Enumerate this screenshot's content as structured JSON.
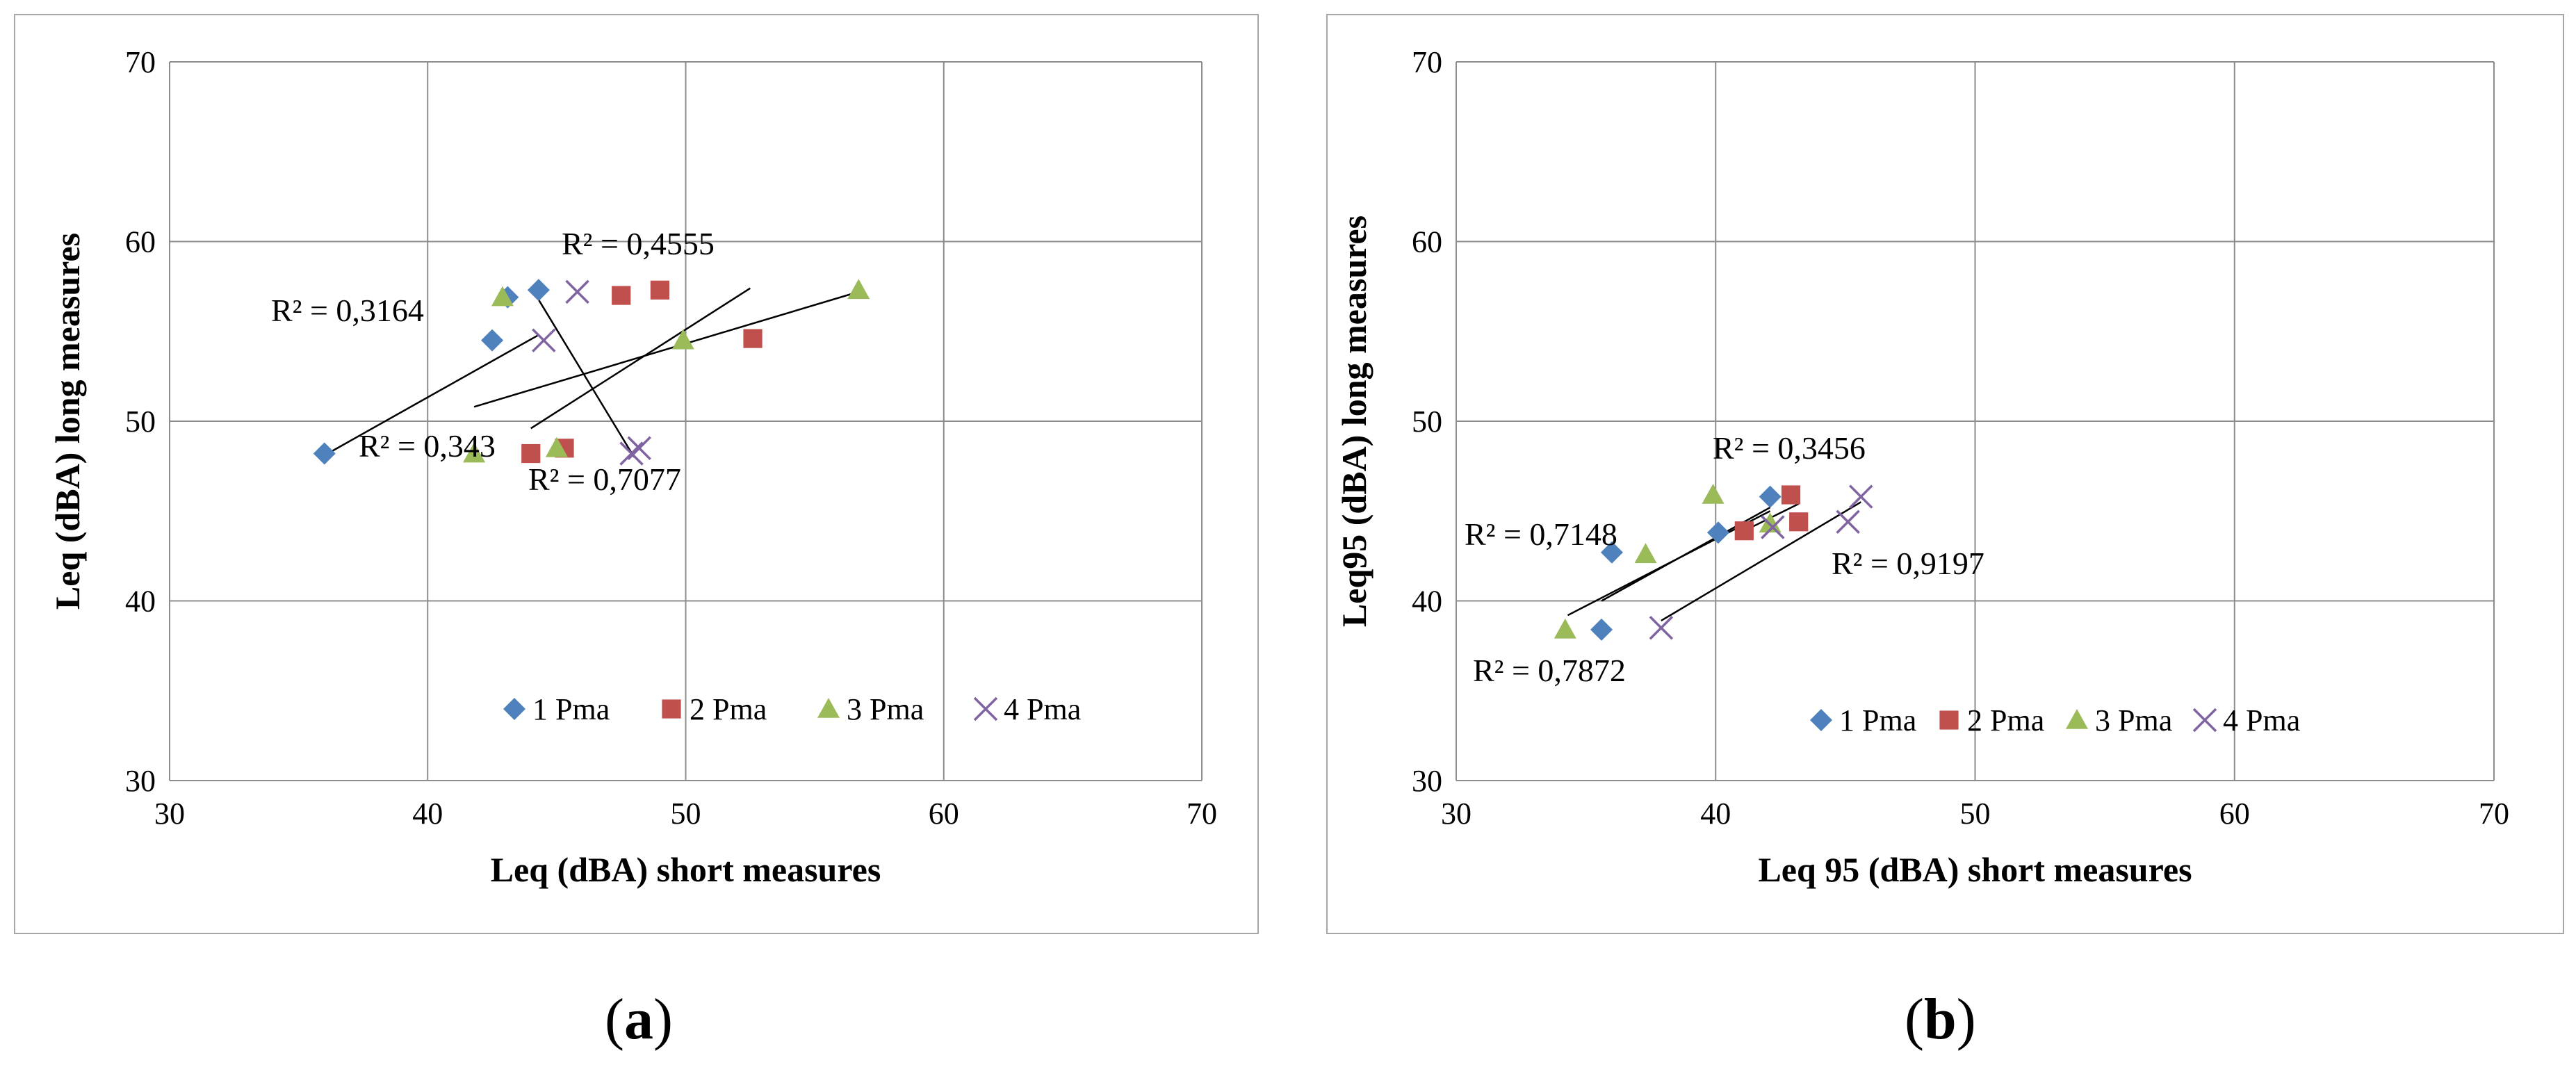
{
  "captions": {
    "a_open": "(",
    "a_letter": "a",
    "a_close": ")",
    "b_open": "(",
    "b_letter": "b",
    "b_close": ")"
  },
  "colors": {
    "s1": "#4f81bd",
    "s2": "#c0504d",
    "s3": "#9bbb59",
    "s4": "#8064a2",
    "grid": "#8c8c8c",
    "trend": "#000000"
  },
  "chart_data": [
    {
      "id": "a",
      "type": "scatter",
      "title": "",
      "xlabel": "Leq (dBA) short measures",
      "ylabel": "Leq (dBA) long measures",
      "xlim": [
        30,
        70
      ],
      "ylim": [
        30,
        70
      ],
      "xticks": [
        30,
        40,
        50,
        60,
        70
      ],
      "yticks": [
        30,
        40,
        50,
        60,
        70
      ],
      "grid": "vertical-and-horizontal",
      "legend_position": "bottom-inside",
      "series": [
        {
          "name": "1 Pma",
          "marker": "diamond",
          "color": "#4f81bd",
          "points": [
            [
              36.0,
              48.2
            ],
            [
              42.5,
              54.5
            ],
            [
              43.1,
              56.9
            ],
            [
              44.3,
              57.3
            ]
          ],
          "trend": [
            [
              36.0,
              48.1
            ],
            [
              44.3,
              54.8
            ]
          ],
          "r2": "R² = 0,3164"
        },
        {
          "name": "2 Pma",
          "marker": "square",
          "color": "#c0504d",
          "points": [
            [
              44.0,
              48.2
            ],
            [
              45.3,
              48.5
            ],
            [
              47.5,
              57.0
            ],
            [
              49.0,
              57.3
            ],
            [
              52.6,
              54.6
            ]
          ],
          "trend": [
            [
              44.0,
              49.6
            ],
            [
              52.5,
              57.4
            ]
          ],
          "r2": "R² = 0,4555"
        },
        {
          "name": "3 Pma",
          "marker": "triangle",
          "color": "#9bbb59",
          "points": [
            [
              41.8,
              48.2
            ],
            [
              42.9,
              56.9
            ],
            [
              45.0,
              48.5
            ],
            [
              49.9,
              54.5
            ],
            [
              56.7,
              57.3
            ]
          ],
          "trend": [
            [
              41.8,
              50.8
            ],
            [
              56.7,
              57.2
            ]
          ],
          "r2": "R² = 0,343"
        },
        {
          "name": "4 Pma",
          "marker": "x",
          "color": "#8064a2",
          "points": [
            [
              44.5,
              54.5
            ],
            [
              45.8,
              57.2
            ],
            [
              47.9,
              48.2
            ],
            [
              48.2,
              48.5
            ]
          ],
          "trend": [
            [
              44.2,
              57.0
            ],
            [
              48.0,
              48.0
            ]
          ],
          "r2": "R² = 0,7077"
        }
      ]
    },
    {
      "id": "b",
      "type": "scatter",
      "title": "",
      "xlabel": "Leq 95 (dBA) short measures",
      "ylabel": "Leq95 (dBA) long measures",
      "xlim": [
        30,
        70
      ],
      "ylim": [
        30,
        70
      ],
      "xticks": [
        30,
        40,
        50,
        60,
        70
      ],
      "yticks": [
        30,
        40,
        50,
        60,
        70
      ],
      "grid": "vertical-and-horizontal",
      "legend_position": "bottom-right-inside",
      "series": [
        {
          "name": "1 Pma",
          "marker": "diamond",
          "color": "#4f81bd",
          "points": [
            [
              35.6,
              38.4
            ],
            [
              36.0,
              42.7
            ],
            [
              40.1,
              43.8
            ],
            [
              42.1,
              45.8
            ]
          ],
          "trend": [
            [
              35.6,
              40.0
            ],
            [
              42.1,
              45.2
            ]
          ],
          "r2": "R² = 0,7148"
        },
        {
          "name": "2 Pma",
          "marker": "square",
          "color": "#c0504d",
          "points": [
            [
              41.1,
              43.9
            ],
            [
              42.9,
              45.9
            ],
            [
              43.2,
              44.4
            ]
          ],
          "trend": [
            [
              41.1,
              43.9
            ],
            [
              43.2,
              45.4
            ]
          ],
          "r2": "R² = 0,3456"
        },
        {
          "name": "3 Pma",
          "marker": "triangle",
          "color": "#9bbb59",
          "points": [
            [
              34.2,
              38.4
            ],
            [
              37.3,
              42.6
            ],
            [
              39.9,
              45.9
            ],
            [
              42.1,
              44.3
            ]
          ],
          "trend": [
            [
              34.3,
              39.2
            ],
            [
              42.1,
              45.0
            ]
          ],
          "r2": "R² = 0,7872"
        },
        {
          "name": "4 Pma",
          "marker": "x",
          "color": "#8064a2",
          "points": [
            [
              37.9,
              38.5
            ],
            [
              42.2,
              44.1
            ],
            [
              45.1,
              44.4
            ],
            [
              45.6,
              45.8
            ]
          ],
          "trend": [
            [
              37.9,
              38.9
            ],
            [
              45.6,
              45.5
            ]
          ],
          "r2": "R² = 0,9197"
        }
      ]
    }
  ]
}
